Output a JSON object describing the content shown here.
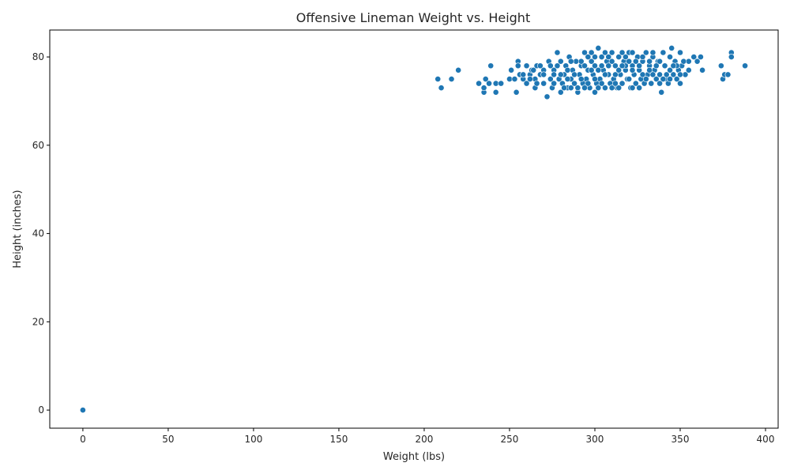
{
  "chart_data": {
    "type": "scatter",
    "title": "Offensive Lineman Weight vs. Height",
    "xlabel": "Weight (lbs)",
    "ylabel": "Height (inches)",
    "xlim": [
      -19.4,
      407.4
    ],
    "ylim": [
      -4.1,
      86.1
    ],
    "xticks": [
      0,
      50,
      100,
      150,
      200,
      250,
      300,
      350,
      400
    ],
    "yticks": [
      0,
      20,
      40,
      60,
      80
    ],
    "grid": false,
    "marker_color": "#1f77b4",
    "points": [
      [
        0,
        0
      ],
      [
        208,
        75
      ],
      [
        210,
        73
      ],
      [
        216,
        75
      ],
      [
        220,
        77
      ],
      [
        232,
        74
      ],
      [
        235,
        72
      ],
      [
        235,
        73
      ],
      [
        236,
        75
      ],
      [
        238,
        74
      ],
      [
        239,
        78
      ],
      [
        242,
        72
      ],
      [
        242,
        74
      ],
      [
        245,
        74
      ],
      [
        250,
        75
      ],
      [
        251,
        77
      ],
      [
        253,
        75
      ],
      [
        254,
        72
      ],
      [
        255,
        79
      ],
      [
        255,
        78
      ],
      [
        256,
        76
      ],
      [
        258,
        75
      ],
      [
        260,
        78
      ],
      [
        260,
        74
      ],
      [
        262,
        76
      ],
      [
        263,
        77
      ],
      [
        265,
        73
      ],
      [
        265,
        75
      ],
      [
        266,
        78
      ],
      [
        268,
        76
      ],
      [
        270,
        77
      ],
      [
        270,
        74
      ],
      [
        272,
        71
      ],
      [
        273,
        79
      ],
      [
        274,
        75
      ],
      [
        275,
        73
      ],
      [
        276,
        77
      ],
      [
        278,
        81
      ],
      [
        279,
        75
      ],
      [
        280,
        72
      ],
      [
        280,
        79
      ],
      [
        281,
        74
      ],
      [
        282,
        76
      ],
      [
        283,
        78
      ],
      [
        284,
        73
      ],
      [
        285,
        80
      ],
      [
        286,
        75
      ],
      [
        287,
        77
      ],
      [
        288,
        74
      ],
      [
        289,
        79
      ],
      [
        290,
        72
      ],
      [
        291,
        76
      ],
      [
        292,
        78
      ],
      [
        293,
        74
      ],
      [
        294,
        81
      ],
      [
        295,
        75
      ],
      [
        296,
        77
      ],
      [
        297,
        73
      ],
      [
        298,
        79
      ],
      [
        299,
        76
      ],
      [
        300,
        72
      ],
      [
        300,
        78
      ],
      [
        301,
        74
      ],
      [
        302,
        82
      ],
      [
        303,
        75
      ],
      [
        304,
        80
      ],
      [
        305,
        77
      ],
      [
        306,
        73
      ],
      [
        307,
        79
      ],
      [
        308,
        76
      ],
      [
        309,
        74
      ],
      [
        310,
        81
      ],
      [
        311,
        75
      ],
      [
        312,
        78
      ],
      [
        313,
        73
      ],
      [
        314,
        80
      ],
      [
        315,
        76
      ],
      [
        316,
        74
      ],
      [
        317,
        79
      ],
      [
        318,
        77
      ],
      [
        319,
        75
      ],
      [
        320,
        81
      ],
      [
        321,
        73
      ],
      [
        322,
        78
      ],
      [
        323,
        76
      ],
      [
        324,
        74
      ],
      [
        325,
        80
      ],
      [
        326,
        77
      ],
      [
        327,
        75
      ],
      [
        328,
        79
      ],
      [
        329,
        74
      ],
      [
        330,
        81
      ],
      [
        331,
        76
      ],
      [
        332,
        78
      ],
      [
        333,
        74
      ],
      [
        334,
        80
      ],
      [
        335,
        77
      ],
      [
        336,
        75
      ],
      [
        337,
        79
      ],
      [
        338,
        76
      ],
      [
        339,
        72
      ],
      [
        340,
        81
      ],
      [
        341,
        78
      ],
      [
        342,
        75
      ],
      [
        343,
        74
      ],
      [
        344,
        77
      ],
      [
        345,
        82
      ],
      [
        346,
        76
      ],
      [
        347,
        79
      ],
      [
        348,
        75
      ],
      [
        349,
        77
      ],
      [
        350,
        81
      ],
      [
        350,
        74
      ],
      [
        351,
        78
      ],
      [
        353,
        76
      ],
      [
        355,
        79
      ],
      [
        355,
        77
      ],
      [
        358,
        80
      ],
      [
        360,
        79
      ],
      [
        362,
        80
      ],
      [
        363,
        77
      ],
      [
        374,
        78
      ],
      [
        375,
        75
      ],
      [
        376,
        76
      ],
      [
        378,
        76
      ],
      [
        380,
        81
      ],
      [
        380,
        80
      ],
      [
        388,
        78
      ],
      [
        262,
        75
      ],
      [
        268,
        78
      ],
      [
        276,
        74
      ],
      [
        284,
        77
      ],
      [
        292,
        75
      ],
      [
        298,
        77
      ],
      [
        304,
        78
      ],
      [
        312,
        76
      ],
      [
        318,
        80
      ],
      [
        326,
        78
      ],
      [
        332,
        77
      ],
      [
        338,
        79
      ],
      [
        344,
        80
      ],
      [
        286,
        79
      ],
      [
        296,
        80
      ],
      [
        306,
        81
      ],
      [
        316,
        81
      ],
      [
        322,
        81
      ],
      [
        334,
        81
      ],
      [
        302,
        73
      ],
      [
        310,
        73
      ],
      [
        314,
        73
      ],
      [
        322,
        73
      ],
      [
        290,
        73
      ],
      [
        294,
        78
      ],
      [
        300,
        75
      ],
      [
        308,
        78
      ],
      [
        320,
        75
      ],
      [
        328,
        76
      ],
      [
        336,
        78
      ],
      [
        342,
        76
      ],
      [
        348,
        78
      ],
      [
        280,
        76
      ],
      [
        288,
        76
      ],
      [
        270,
        76
      ],
      [
        264,
        77
      ],
      [
        278,
        78
      ],
      [
        282,
        73
      ],
      [
        300,
        80
      ],
      [
        314,
        77
      ],
      [
        324,
        79
      ],
      [
        330,
        75
      ],
      [
        340,
        75
      ],
      [
        346,
        78
      ],
      [
        352,
        79
      ],
      [
        296,
        74
      ],
      [
        306,
        76
      ],
      [
        318,
        78
      ],
      [
        326,
        73
      ],
      [
        334,
        76
      ],
      [
        310,
        79
      ],
      [
        286,
        73
      ],
      [
        292,
        79
      ],
      [
        304,
        74
      ],
      [
        316,
        78
      ],
      [
        322,
        77
      ],
      [
        328,
        80
      ],
      [
        338,
        74
      ],
      [
        344,
        75
      ],
      [
        350,
        76
      ],
      [
        274,
        78
      ],
      [
        266,
        74
      ],
      [
        258,
        76
      ],
      [
        298,
        81
      ],
      [
        308,
        80
      ],
      [
        320,
        79
      ],
      [
        332,
        79
      ],
      [
        312,
        74
      ],
      [
        302,
        77
      ],
      [
        294,
        73
      ],
      [
        284,
        75
      ],
      [
        276,
        76
      ]
    ]
  }
}
